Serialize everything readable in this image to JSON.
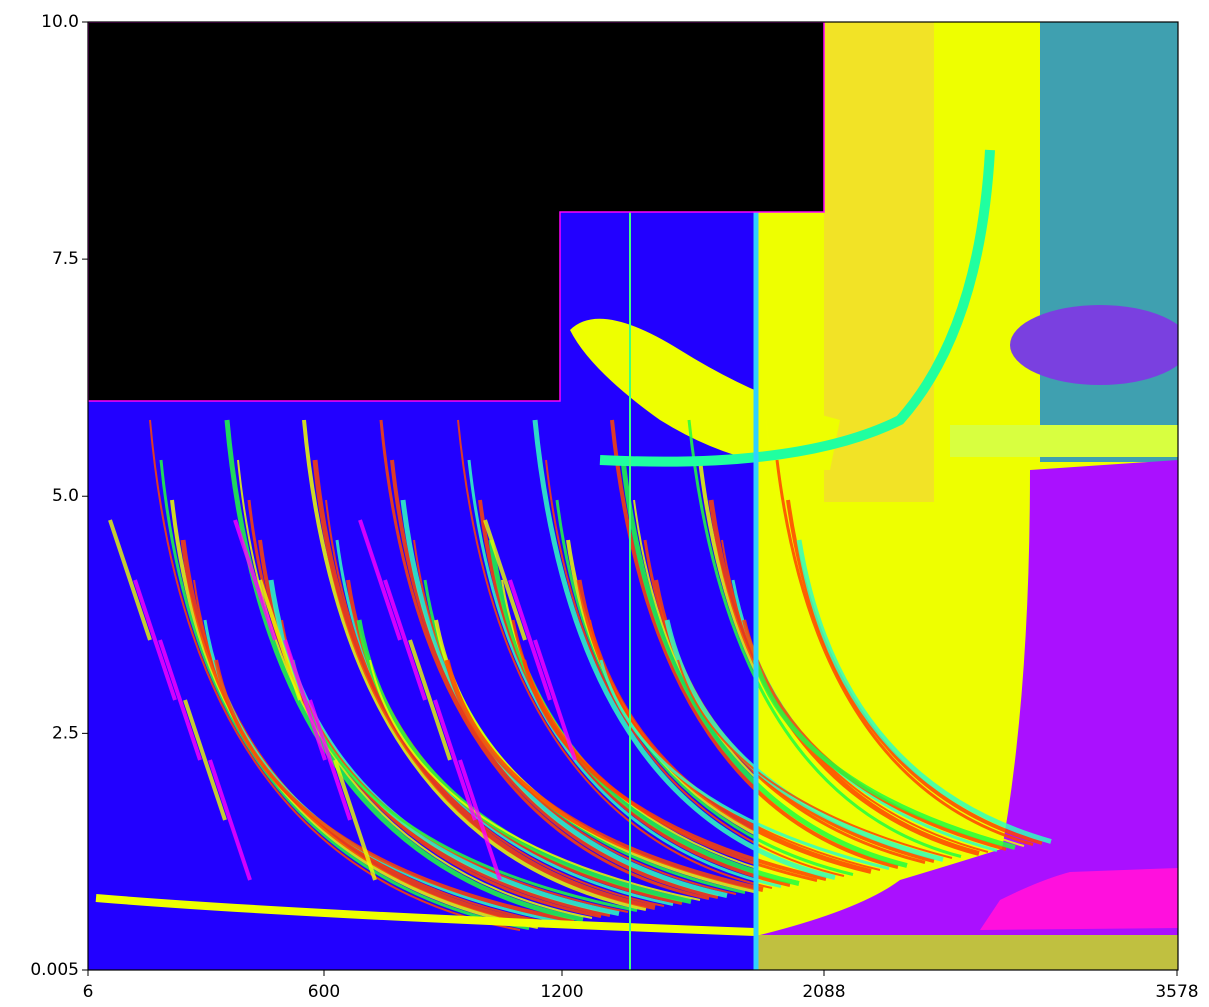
{
  "chart_data": {
    "type": "heatmap",
    "xlim": [
      6,
      3578
    ],
    "xticks": [
      6,
      600,
      1200,
      2088,
      3578
    ],
    "ylim": [
      0.005,
      10
    ],
    "yticks": [
      0.005,
      2.5,
      {
        "value": 5,
        "label": "5.0"
      },
      7.5,
      {
        "value": 10,
        "label": "10.0"
      }
    ]
  }
}
